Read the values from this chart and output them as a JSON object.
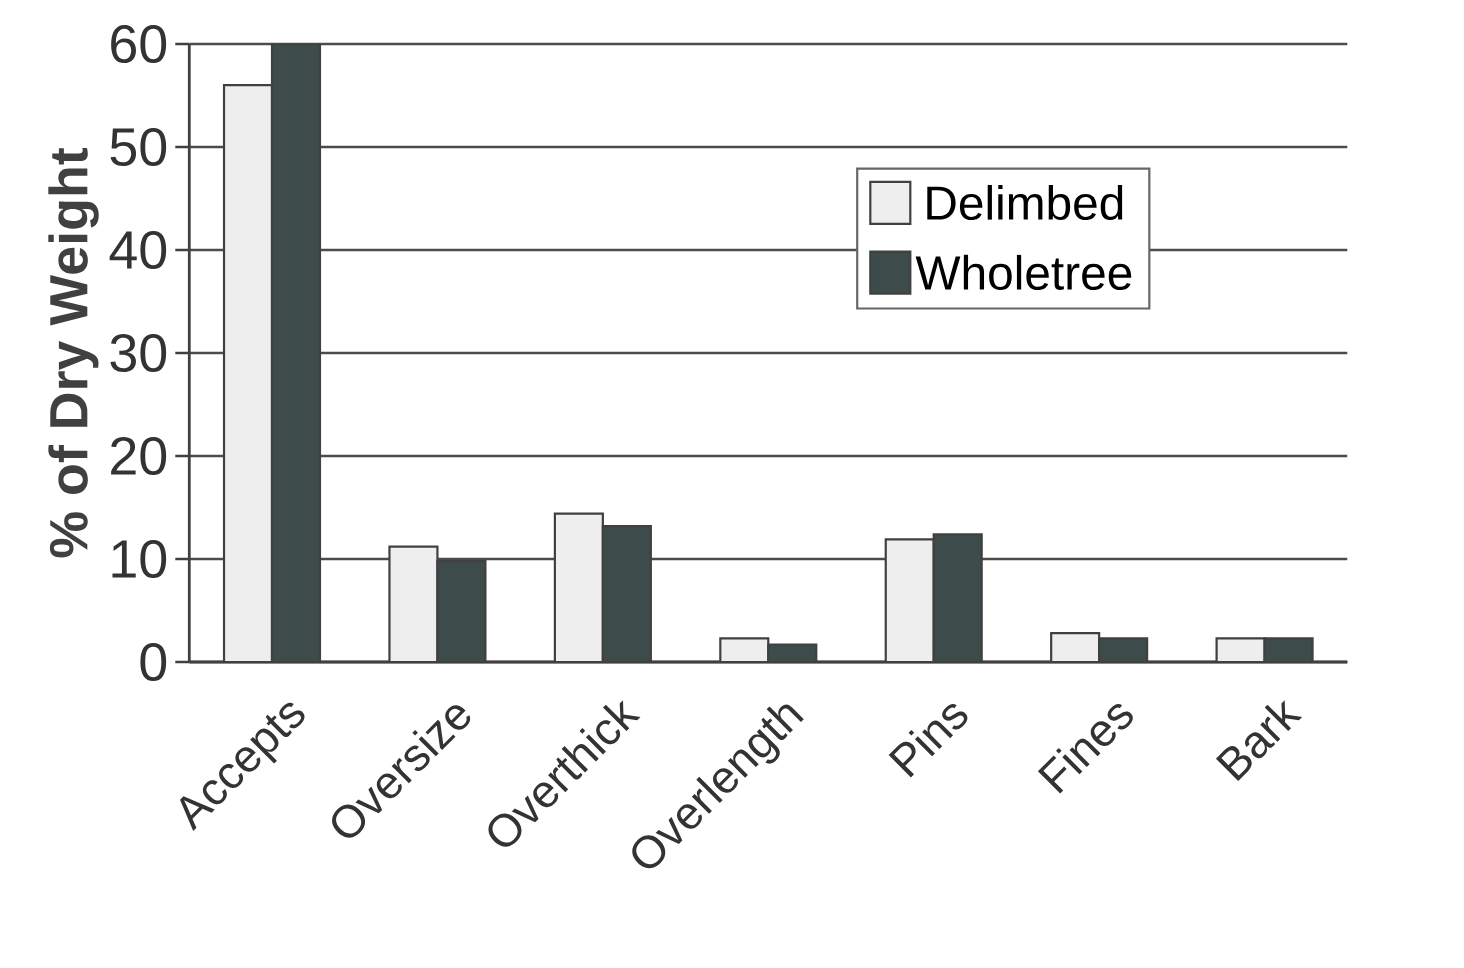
{
  "chart_data": {
    "type": "bar",
    "ylabel": "% of Dry Weight",
    "categories": [
      "Accepts",
      "Oversize",
      "Overthick",
      "Overlength",
      "Pins",
      "Fines",
      "Bark"
    ],
    "series": [
      {
        "name": "Delimbed",
        "color": "#eeeeee",
        "values": [
          56,
          11.2,
          14.4,
          2.3,
          11.9,
          2.8,
          2.3
        ]
      },
      {
        "name": "Wholetree",
        "color": "#3d4b4b",
        "values": [
          60,
          9.8,
          13.2,
          1.7,
          12.4,
          2.3,
          2.3
        ]
      }
    ],
    "ylim": [
      0,
      60
    ],
    "yticks": [
      0,
      10,
      20,
      30,
      40,
      50,
      60
    ],
    "grid": "y",
    "legend": "top right"
  }
}
